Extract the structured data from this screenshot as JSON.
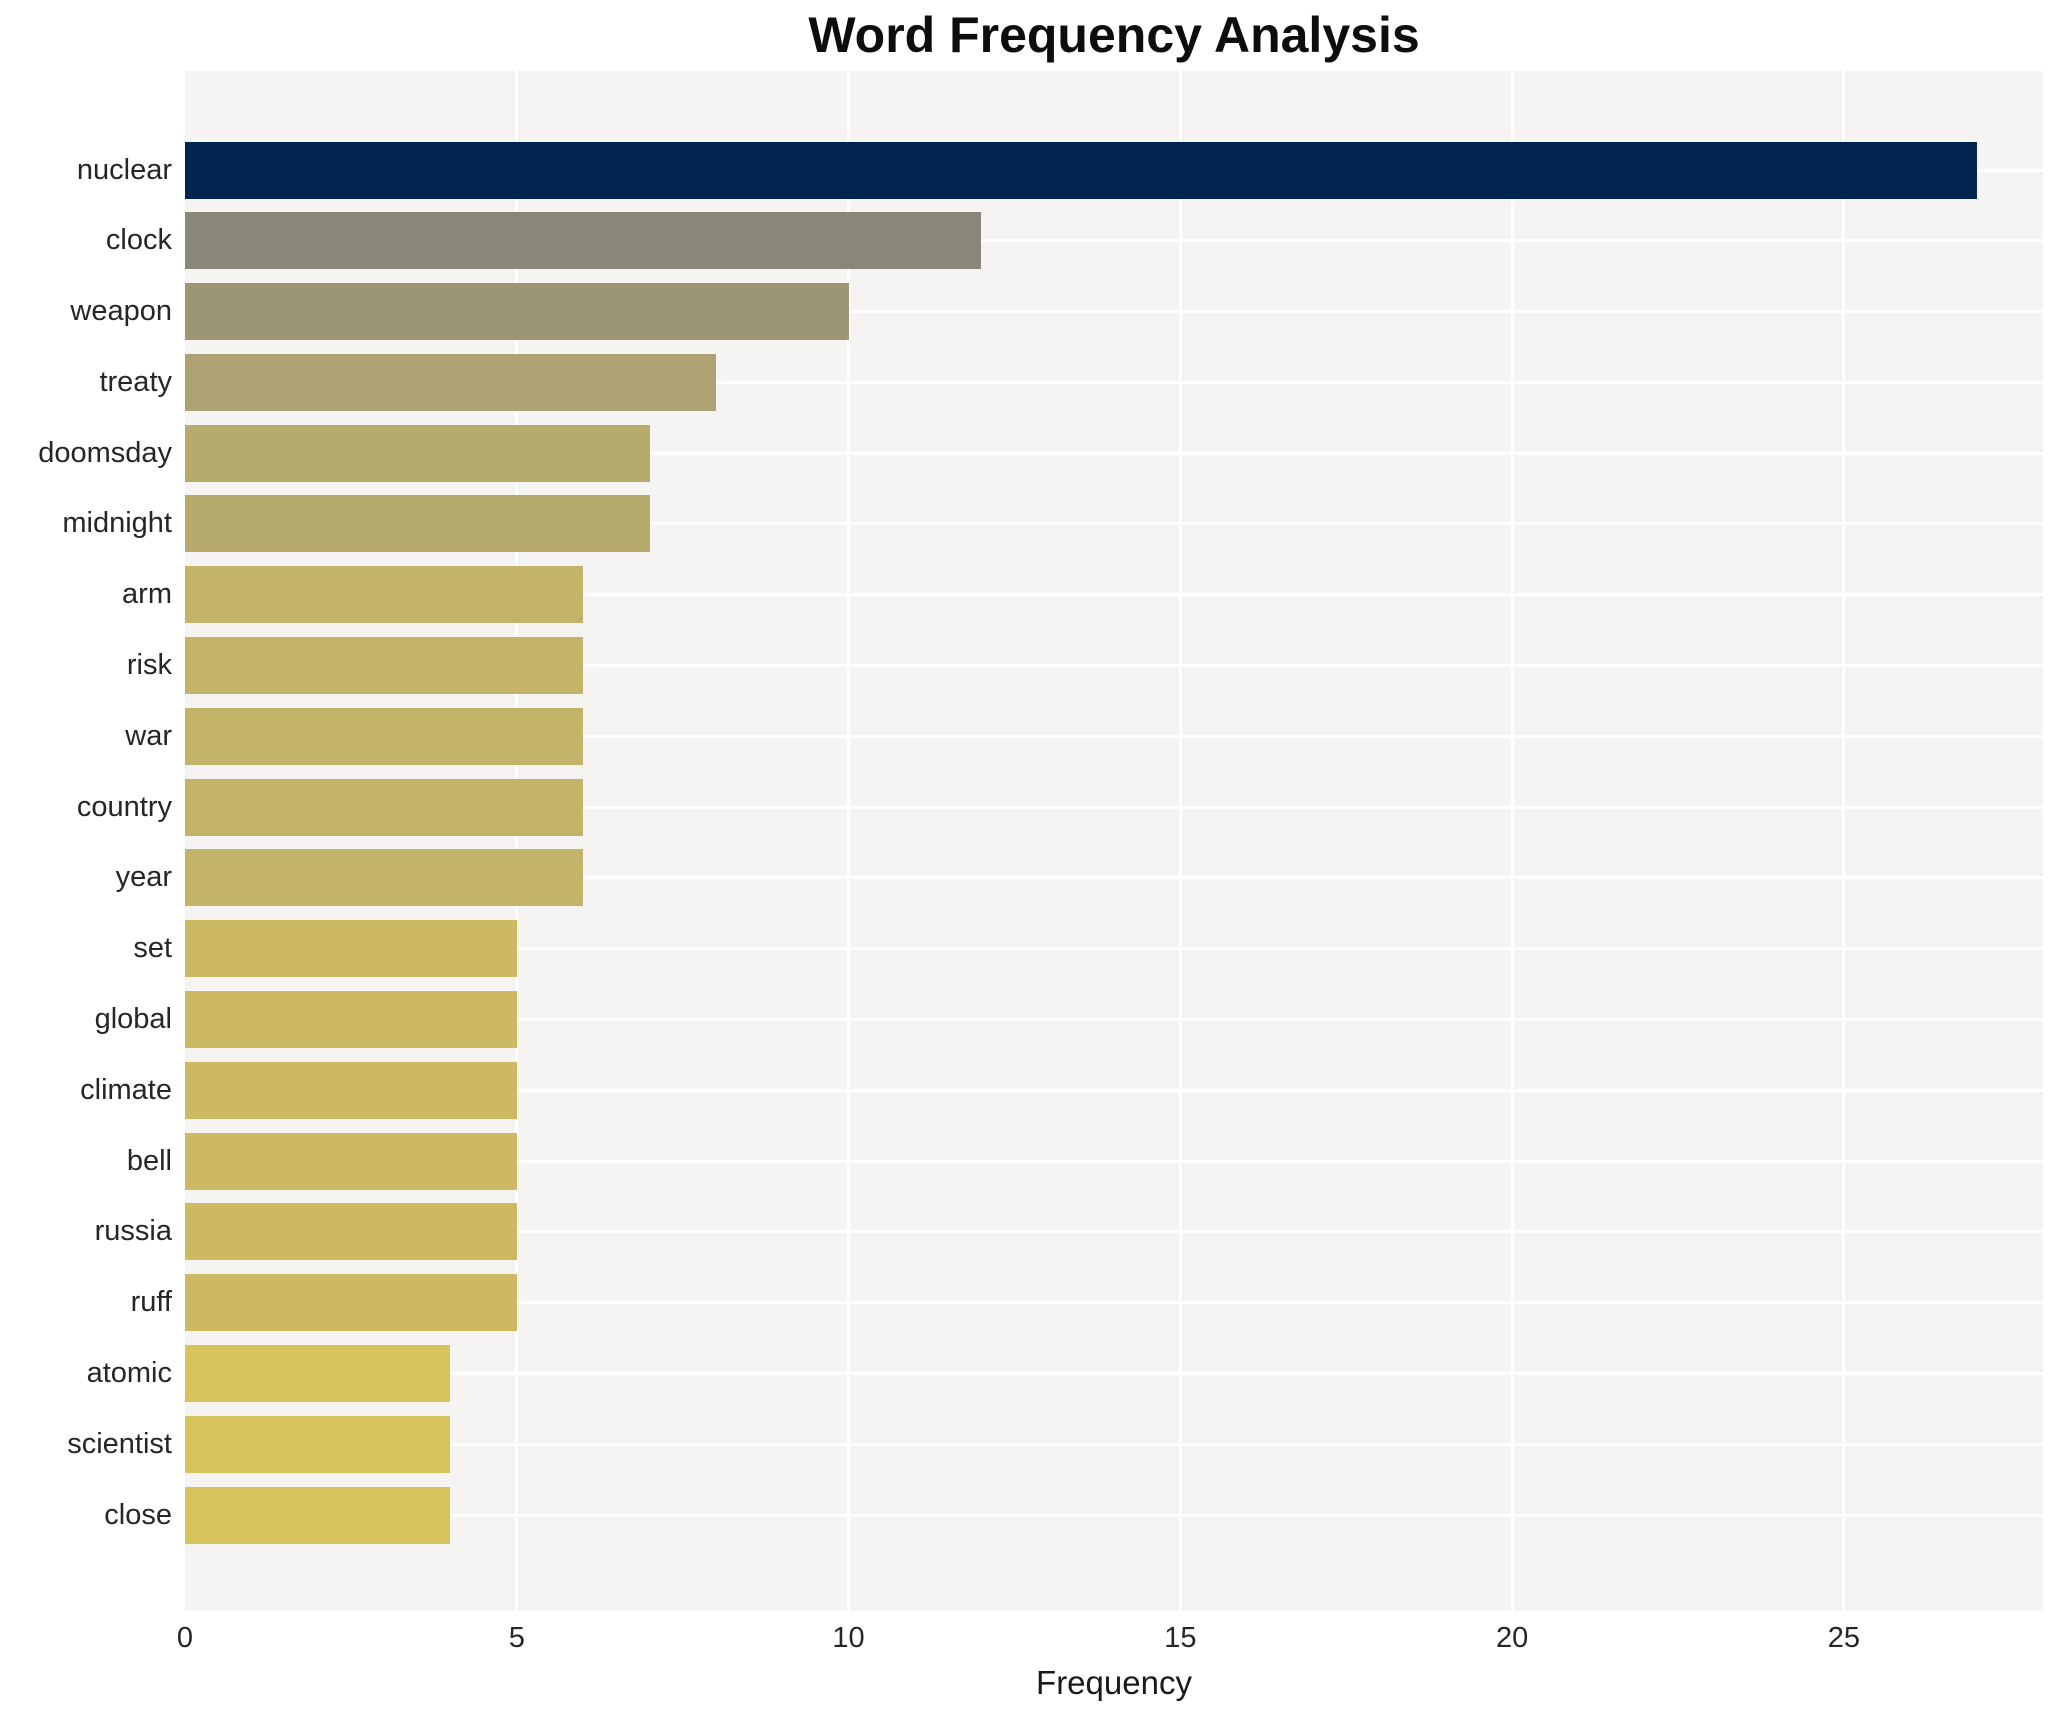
{
  "title": "Word Frequency Analysis",
  "chart_data": {
    "type": "bar",
    "orientation": "horizontal",
    "title": "Word Frequency Analysis",
    "xlabel": "Frequency",
    "ylabel": "",
    "categories": [
      "nuclear",
      "clock",
      "weapon",
      "treaty",
      "doomsday",
      "midnight",
      "arm",
      "risk",
      "war",
      "country",
      "year",
      "set",
      "global",
      "climate",
      "bell",
      "russia",
      "ruff",
      "atomic",
      "scientist",
      "close"
    ],
    "values": [
      27,
      12,
      10,
      8,
      7,
      7,
      6,
      6,
      6,
      6,
      6,
      5,
      5,
      5,
      5,
      5,
      5,
      4,
      4,
      4
    ],
    "bar_colors": [
      "#01254e",
      "#8a8779",
      "#9c9674",
      "#aea173",
      "#b6aa6c",
      "#b6aa6c",
      "#c2b369",
      "#c2b369",
      "#c2b369",
      "#c2b369",
      "#c2b369",
      "#cdb962",
      "#cdb962",
      "#cdb962",
      "#cdb962",
      "#cdb962",
      "#cdb962",
      "#d7c45c",
      "#d7c45c",
      "#d7c45c"
    ],
    "xlim": [
      0,
      28
    ],
    "xticks": [
      0,
      5,
      10,
      15,
      20,
      25
    ],
    "grid": true,
    "grid_color": "#ffffff",
    "plot_background": "#f5f4f2",
    "legend": false
  }
}
